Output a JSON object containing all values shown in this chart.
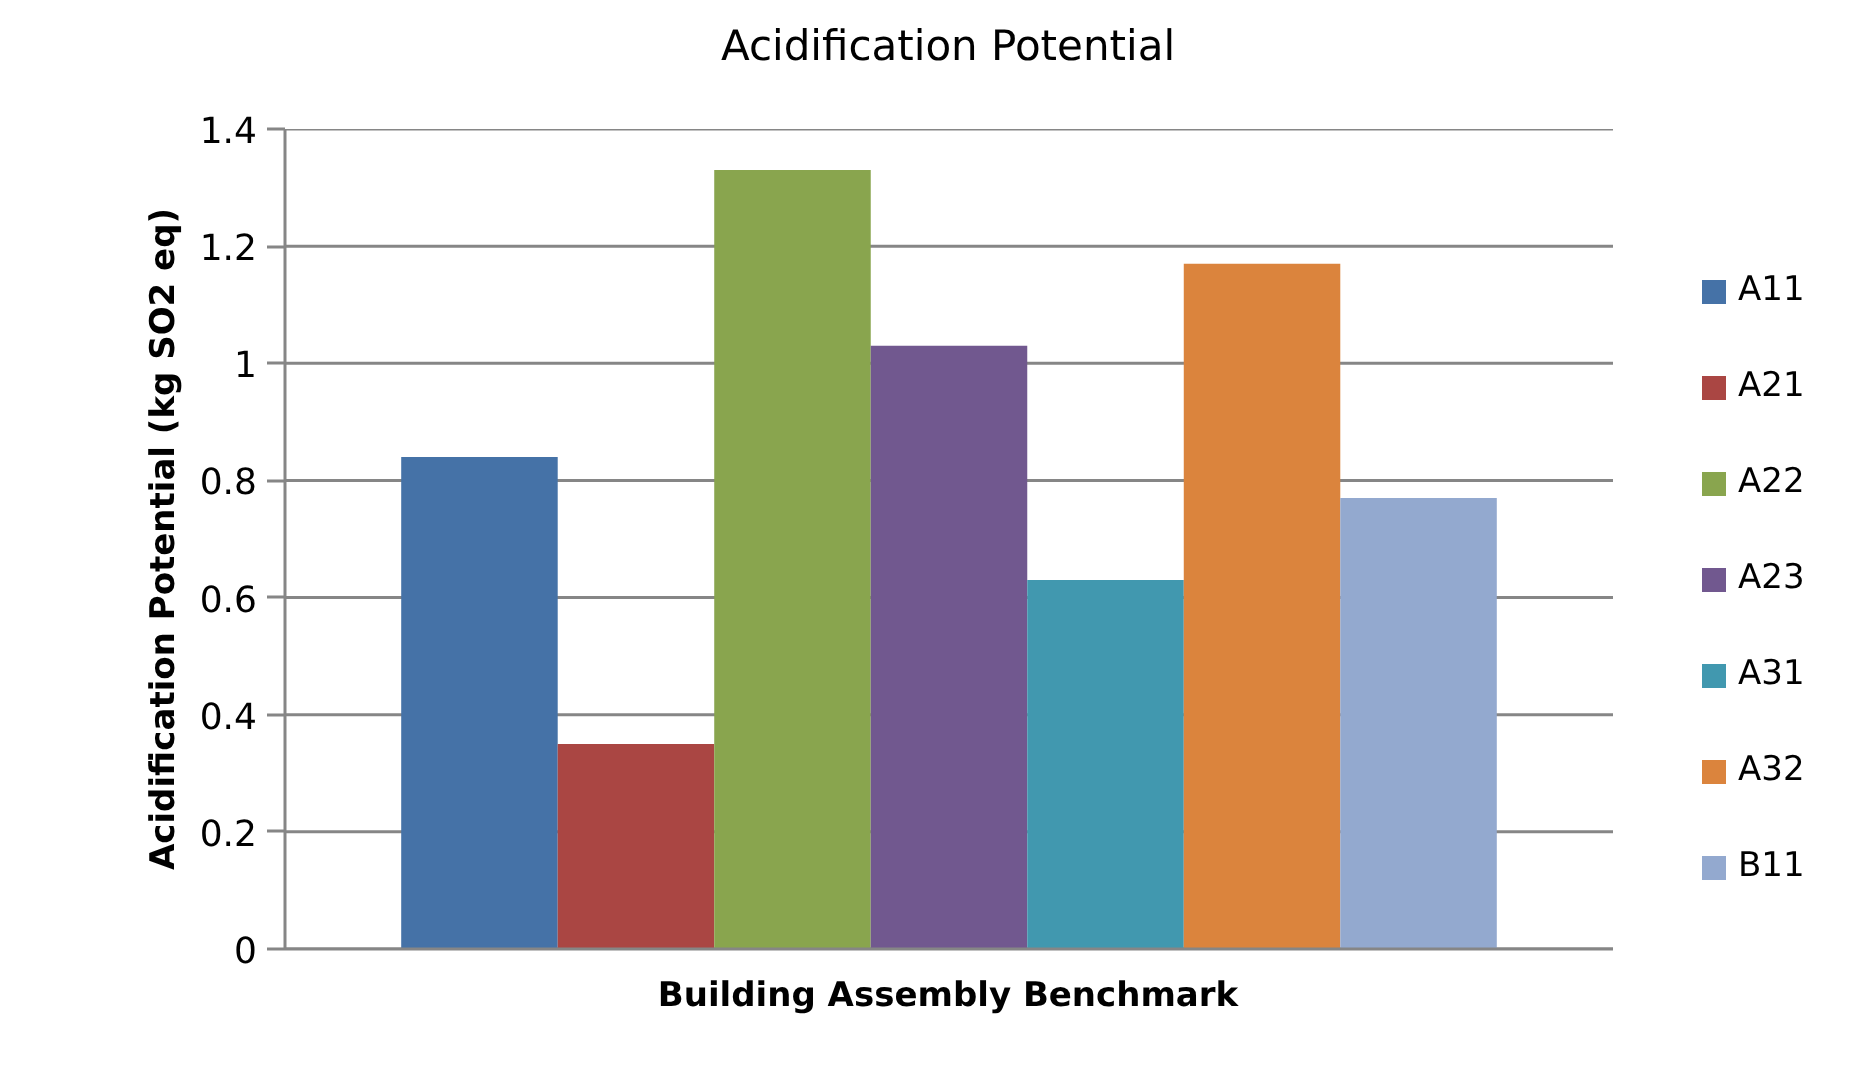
{
  "chart_data": {
    "type": "bar",
    "title": "Acidification Potential",
    "xlabel": "Building Assembly Benchmark",
    "ylabel": "Acidification Potential (kg SO2 eq)",
    "categories": [
      null
    ],
    "series": [
      {
        "name": "A11",
        "color": "#4572a7",
        "values": [
          0.84
        ]
      },
      {
        "name": "A21",
        "color": "#aa4643",
        "values": [
          0.35
        ]
      },
      {
        "name": "A22",
        "color": "#89a54e",
        "values": [
          1.33
        ]
      },
      {
        "name": "A23",
        "color": "#71588f",
        "values": [
          1.03
        ]
      },
      {
        "name": "A31",
        "color": "#4198af",
        "values": [
          0.63
        ]
      },
      {
        "name": "A32",
        "color": "#db843d",
        "values": [
          1.17
        ]
      },
      {
        "name": "B11",
        "color": "#93a9cf",
        "values": [
          0.77
        ]
      }
    ],
    "ylim": [
      0,
      1.4
    ],
    "yticks": [
      0,
      0.2,
      0.4,
      0.6,
      0.8,
      1,
      1.2,
      1.4
    ],
    "grid": "y",
    "legend": "right"
  }
}
